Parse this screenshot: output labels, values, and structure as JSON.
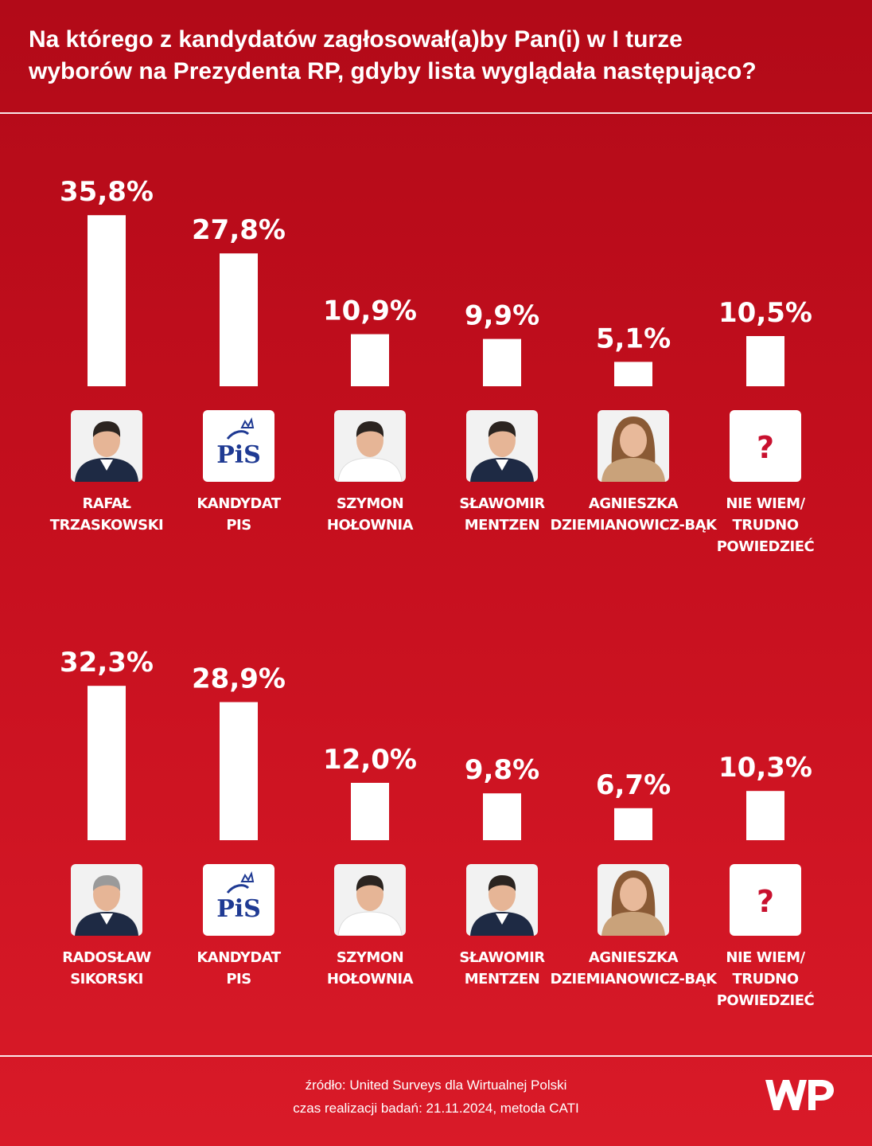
{
  "title": "Na którego z kandydatów zagłosował(a)by Pan(i) w I turze\nwyborów na Prezydenta RP, gdyby lista wyglądała następująco?",
  "colors": {
    "background": "#c50f1e",
    "bar": "#ffffff",
    "party_blue": "#1f3a93",
    "party_red": "#d1102a",
    "question": "#c8102e"
  },
  "chart_data": [
    {
      "type": "bar",
      "value_unit": "%",
      "categories": [
        [
          "RAFAŁ",
          "TRZASKOWSKI"
        ],
        [
          "KANDYDAT",
          "PIS"
        ],
        [
          "SZYMON",
          "HOŁOWNIA"
        ],
        [
          "SŁAWOMIR",
          "MENTZEN"
        ],
        [
          "AGNIESZKA",
          "DZIEMIANOWICZ-BĄK"
        ],
        [
          "NIE WIEM/",
          "TRUDNO",
          "POWIEDZIEĆ"
        ]
      ],
      "values": [
        35.8,
        27.8,
        10.9,
        9.9,
        5.1,
        10.5
      ],
      "labels": [
        "35,8%",
        "27,8%",
        "10,9%",
        "9,9%",
        "5,1%",
        "10,5%"
      ],
      "icons": [
        "photo-trzaskowski",
        "pis-logo",
        "photo-holownia",
        "photo-mentzen",
        "photo-dziemianowicz-bak",
        "question-mark"
      ]
    },
    {
      "type": "bar",
      "value_unit": "%",
      "categories": [
        [
          "RADOSŁAW",
          "SIKORSKI"
        ],
        [
          "KANDYDAT",
          "PIS"
        ],
        [
          "SZYMON",
          "HOŁOWNIA"
        ],
        [
          "SŁAWOMIR",
          "MENTZEN"
        ],
        [
          "AGNIESZKA",
          "DZIEMIANOWICZ-BĄK"
        ],
        [
          "NIE WIEM/",
          "TRUDNO",
          "POWIEDZIEĆ"
        ]
      ],
      "values": [
        32.3,
        28.9,
        12.0,
        9.8,
        6.7,
        10.3
      ],
      "labels": [
        "32,3%",
        "28,9%",
        "12,0%",
        "9,8%",
        "6,7%",
        "10,3%"
      ],
      "icons": [
        "photo-sikorski",
        "pis-logo",
        "photo-holownia",
        "photo-mentzen",
        "photo-dziemianowicz-bak",
        "question-mark"
      ]
    }
  ],
  "pis_logo_text": "PiS",
  "question_mark": "?",
  "footer": {
    "source": "źródło: United Surveys dla Wirtualnej Polski",
    "date": "czas realizacji badań: 21.11.2024, metoda CATI"
  },
  "logo_name": "wp-logo"
}
